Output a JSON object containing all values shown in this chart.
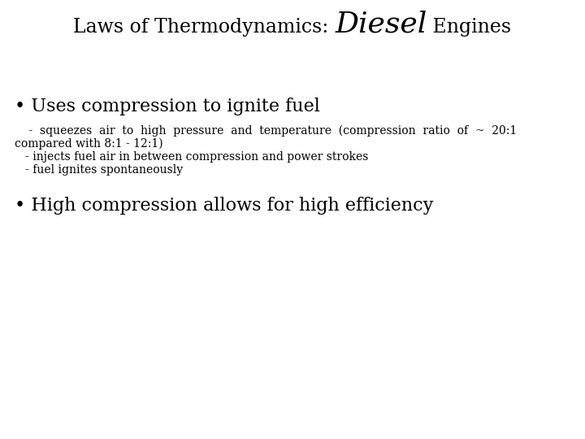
{
  "background_color": "#ffffff",
  "text_color": "#000000",
  "fig_width": 7.2,
  "fig_height": 5.4,
  "dpi": 100,
  "title_seg1": "Laws of Thermodynamics: ",
  "title_seg2": "Diesel",
  "title_seg3": " Engines",
  "title_sc_size": 17,
  "title_bold_size": 26,
  "bullet1": "• Uses compression to ignite fuel",
  "bullet1_size": 16,
  "sub1_line1": "    -  squeezes  air  to  high  pressure  and  temperature  (compression  ratio  of  ~  20:1",
  "sub1_line2": "compared with 8:1 - 12:1)",
  "sub1_line3": "   - injects fuel air in between compression and power strokes",
  "sub1_line4": "   - fuel ignites spontaneously",
  "sub_size": 10,
  "bullet2": "• High compression allows for high efficiency",
  "bullet2_size": 16
}
